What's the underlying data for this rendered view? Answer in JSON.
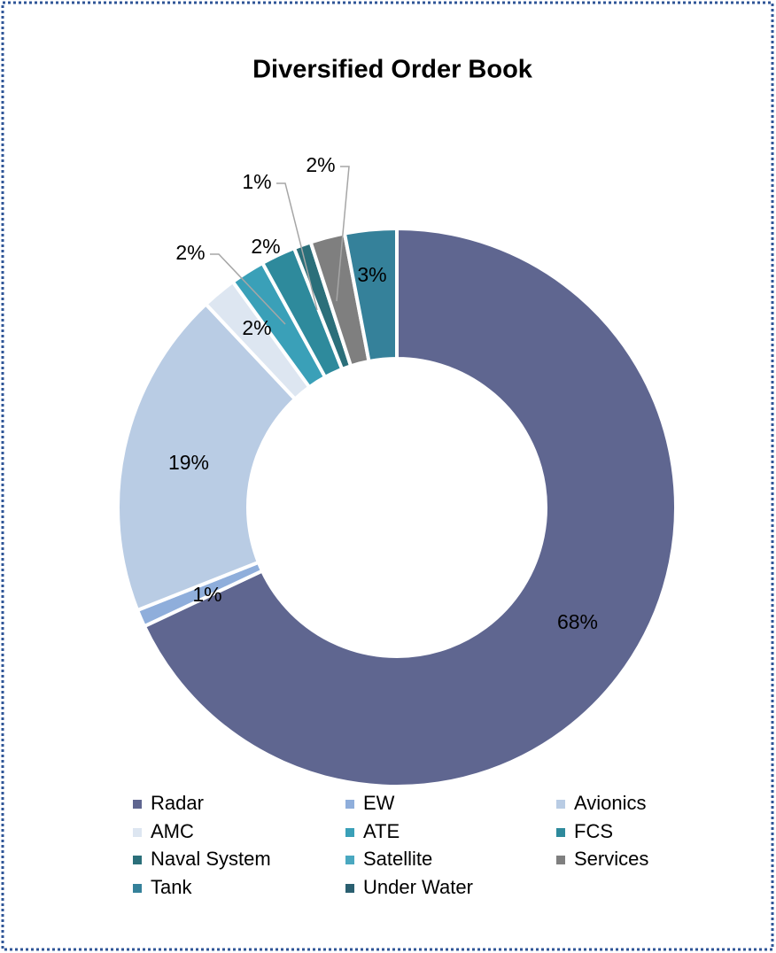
{
  "chart_data": {
    "type": "donut",
    "title": "Diversified Order Book",
    "categories": [
      "Radar",
      "EW",
      "Avionics",
      "AMC",
      "ATE",
      "FCS",
      "Naval System",
      "Satellite",
      "Services",
      "Tank",
      "Under Water"
    ],
    "values": [
      68,
      1,
      19,
      2,
      2,
      2,
      1,
      0,
      2,
      3,
      0
    ],
    "value_labels": [
      "68%",
      "1%",
      "19%",
      "2%",
      "2%",
      "2%",
      "1%",
      null,
      "2%",
      "3%",
      null
    ],
    "colors": [
      "#5f6690",
      "#8faedb",
      "#b9cce4",
      "#dde6f1",
      "#3aa0b8",
      "#2e8a9c",
      "#2b6f7a",
      "#4aa8c0",
      "#7f7f7f",
      "#35819a",
      "#2a5f70"
    ],
    "legend": "bottom"
  }
}
